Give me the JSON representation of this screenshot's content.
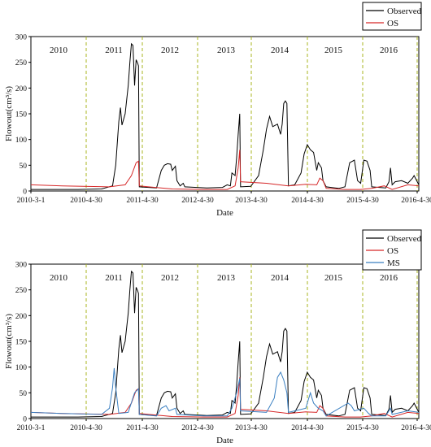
{
  "chart_data": [
    {
      "type": "line",
      "xlabel": "Date",
      "ylabel": "Flowout(cm³/s)",
      "x_tick_labels": [
        "2010-3-1",
        "2010-4-30",
        "2011-4-30",
        "2012-4-30",
        "2013-4-30",
        "2014-4-30",
        "2015-4-30",
        "2016-4-30"
      ],
      "ylim": [
        0,
        300
      ],
      "y_ticks": [
        0,
        50,
        100,
        150,
        200,
        250,
        300
      ],
      "year_labels": [
        "2010",
        "2011",
        "2012",
        "2013",
        "2014",
        "2015",
        "2016"
      ],
      "legend_position": "top-right",
      "series": [
        {
          "name": "Observed",
          "color": "#000000",
          "points": [
            [
              0,
              3
            ],
            [
              15,
              3
            ],
            [
              30,
              3
            ],
            [
              45,
              4
            ],
            [
              52,
              10
            ],
            [
              54,
              50
            ],
            [
              56,
              135
            ],
            [
              57,
              162
            ],
            [
              58,
              128
            ],
            [
              60,
              150
            ],
            [
              62,
              205
            ],
            [
              63,
              250
            ],
            [
              64,
              286
            ],
            [
              65,
              283
            ],
            [
              66,
              205
            ],
            [
              67,
              255
            ],
            [
              68,
              248
            ],
            [
              68.5,
              243
            ],
            [
              69,
              8
            ],
            [
              80,
              6
            ],
            [
              83,
              40
            ],
            [
              85,
              50
            ],
            [
              87,
              53
            ],
            [
              89,
              52
            ],
            [
              90,
              40
            ],
            [
              92,
              48
            ],
            [
              93,
              20
            ],
            [
              95,
              10
            ],
            [
              97,
              15
            ],
            [
              98,
              8
            ],
            [
              112,
              6
            ],
            [
              122,
              7
            ],
            [
              125,
              12
            ],
            [
              127,
              10
            ],
            [
              128,
              35
            ],
            [
              130,
              30
            ],
            [
              131,
              65
            ],
            [
              132,
              110
            ],
            [
              133,
              150
            ],
            [
              133.5,
              8
            ],
            [
              140,
              9
            ],
            [
              145,
              30
            ],
            [
              148,
              80
            ],
            [
              150,
              120
            ],
            [
              152,
              145
            ],
            [
              154,
              125
            ],
            [
              157,
              130
            ],
            [
              159,
              110
            ],
            [
              160,
              130
            ],
            [
              161,
              170
            ],
            [
              162,
              175
            ],
            [
              163,
              170
            ],
            [
              164,
              10
            ],
            [
              168,
              12
            ],
            [
              172,
              35
            ],
            [
              174,
              72
            ],
            [
              176,
              90
            ],
            [
              178,
              80
            ],
            [
              180,
              75
            ],
            [
              182,
              40
            ],
            [
              183,
              55
            ],
            [
              185,
              45
            ],
            [
              186,
              20
            ],
            [
              188,
              8
            ],
            [
              196,
              5
            ],
            [
              200,
              8
            ],
            [
              203,
              55
            ],
            [
              206,
              60
            ],
            [
              208,
              20
            ],
            [
              210,
              15
            ],
            [
              212,
              60
            ],
            [
              214,
              58
            ],
            [
              216,
              40
            ],
            [
              217,
              8
            ],
            [
              226,
              6
            ],
            [
              228,
              18
            ],
            [
              229,
              45
            ],
            [
              230,
              12
            ],
            [
              232,
              18
            ],
            [
              236,
              20
            ],
            [
              240,
              15
            ],
            [
              243,
              25
            ],
            [
              244,
              30
            ],
            [
              247,
              12
            ]
          ]
        },
        {
          "name": "OS",
          "color": "#d62728",
          "points": [
            [
              0,
              12
            ],
            [
              20,
              10
            ],
            [
              50,
              8
            ],
            [
              60,
              12
            ],
            [
              64,
              30
            ],
            [
              67,
              55
            ],
            [
              68.5,
              58
            ],
            [
              69,
              10
            ],
            [
              75,
              8
            ],
            [
              90,
              4
            ],
            [
              110,
              3
            ],
            [
              125,
              3
            ],
            [
              130,
              10
            ],
            [
              132,
              45
            ],
            [
              133,
              80
            ],
            [
              133.5,
              18
            ],
            [
              150,
              15
            ],
            [
              164,
              10
            ],
            [
              175,
              13
            ],
            [
              182,
              12
            ],
            [
              184,
              25
            ],
            [
              186,
              20
            ],
            [
              188,
              5
            ],
            [
              200,
              3
            ],
            [
              210,
              3
            ],
            [
              217,
              5
            ],
            [
              225,
              10
            ],
            [
              230,
              3
            ],
            [
              240,
              12
            ],
            [
              247,
              10
            ]
          ]
        },
        {
          "name": "MS",
          "color": "#3a7fc1",
          "points": [
            [
              0,
              12
            ],
            [
              20,
              10
            ],
            [
              45,
              8
            ],
            [
              50,
              20
            ],
            [
              52,
              60
            ],
            [
              53,
              98
            ],
            [
              54,
              60
            ],
            [
              56,
              10
            ],
            [
              62,
              12
            ],
            [
              66,
              50
            ],
            [
              68.5,
              58
            ],
            [
              69,
              8
            ],
            [
              80,
              5
            ],
            [
              83,
              20
            ],
            [
              86,
              25
            ],
            [
              88,
              15
            ],
            [
              92,
              20
            ],
            [
              93,
              8
            ],
            [
              110,
              5
            ],
            [
              125,
              5
            ],
            [
              128,
              20
            ],
            [
              131,
              50
            ],
            [
              133,
              78
            ],
            [
              133.5,
              15
            ],
            [
              150,
              12
            ],
            [
              155,
              40
            ],
            [
              157,
              80
            ],
            [
              159,
              90
            ],
            [
              161,
              75
            ],
            [
              163,
              50
            ],
            [
              164,
              12
            ],
            [
              175,
              20
            ],
            [
              178,
              50
            ],
            [
              180,
              30
            ],
            [
              183,
              20
            ],
            [
              186,
              15
            ],
            [
              188,
              5
            ],
            [
              202,
              30
            ],
            [
              204,
              25
            ],
            [
              206,
              15
            ],
            [
              212,
              20
            ],
            [
              215,
              10
            ],
            [
              217,
              5
            ],
            [
              226,
              5
            ],
            [
              229,
              20
            ],
            [
              230,
              8
            ],
            [
              240,
              15
            ],
            [
              247,
              12
            ]
          ]
        }
      ]
    }
  ],
  "panels": [
    {
      "legend": [
        "Observed",
        "OS"
      ]
    },
    {
      "legend": [
        "Observed",
        "OS",
        "MS"
      ]
    }
  ]
}
